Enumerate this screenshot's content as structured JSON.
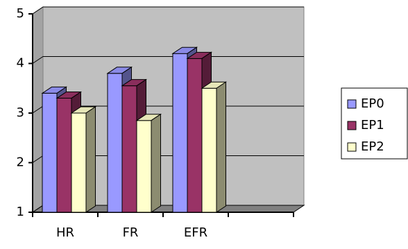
{
  "chart_data": {
    "type": "bar3d",
    "categories": [
      "HR",
      "FR",
      "EFR",
      null
    ],
    "series": [
      {
        "name": "EP0",
        "color": "#9999ff",
        "values": [
          3.4,
          3.8,
          4.2,
          null
        ]
      },
      {
        "name": "EP1",
        "color": "#993366",
        "values": [
          3.3,
          3.55,
          4.1,
          null
        ]
      },
      {
        "name": "EP2",
        "color": "#ffffcc",
        "values": [
          3.0,
          2.85,
          3.5,
          null
        ]
      }
    ],
    "ylim": [
      1,
      5
    ],
    "yticks": [
      1,
      2,
      3,
      4,
      5
    ],
    "grid": true,
    "wall_color": "#c0c0c0",
    "legend": "right"
  }
}
